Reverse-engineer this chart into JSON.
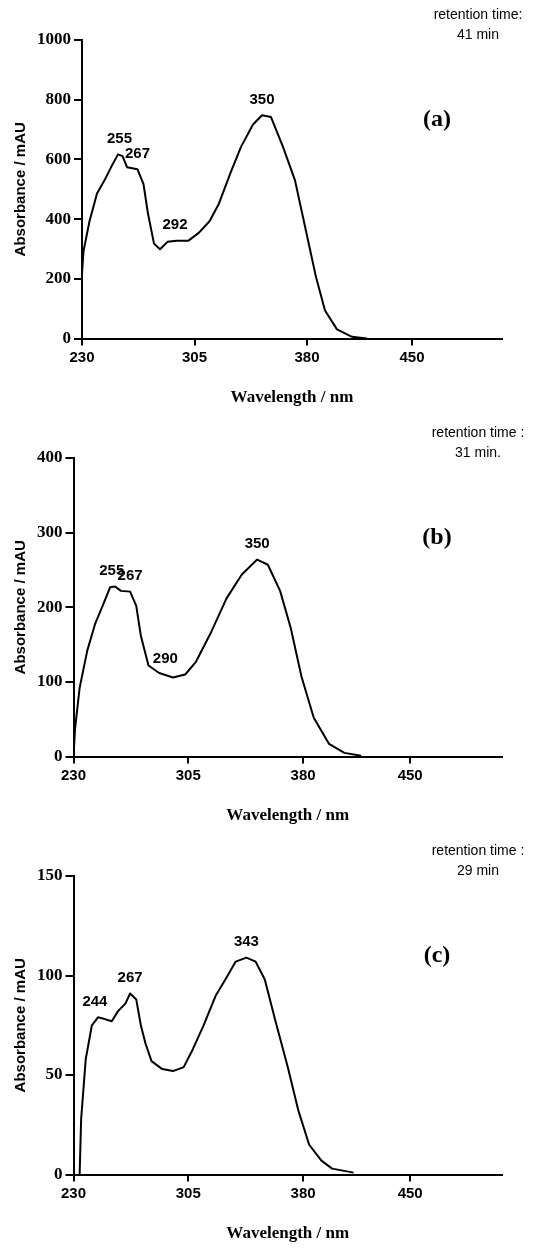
{
  "chart_data": [
    {
      "type": "line",
      "title": "(a)",
      "xlabel": "Wavelength / nm",
      "ylabel": "Absorbance / mAU",
      "annotations": [
        "retention time:",
        "41 min",
        {
          "text": "255",
          "x": 255,
          "y": 617
        },
        {
          "text": "267",
          "x": 267,
          "y": 567
        },
        {
          "text": "292",
          "x": 292,
          "y": 328
        },
        {
          "text": "350",
          "x": 350,
          "y": 748
        }
      ],
      "xlim": [
        230,
        510
      ],
      "xticks": [
        230,
        305,
        380,
        450
      ],
      "ylim": [
        0,
        1000
      ],
      "yticks": [
        0,
        200,
        400,
        600,
        800,
        1000
      ],
      "grid": false,
      "series": [
        {
          "color": "#000000",
          "x": [
            230,
            231,
            235,
            240,
            245,
            250,
            254,
            257,
            260,
            267,
            271,
            274,
            278,
            282,
            287,
            293,
            301,
            308,
            315,
            321,
            329,
            336,
            344,
            350,
            356,
            364,
            372,
            379,
            386,
            392,
            400,
            410,
            420
          ],
          "values": [
            218,
            293,
            393,
            486,
            530,
            580,
            617,
            611,
            574,
            567,
            517,
            418,
            318,
            299,
            324,
            328,
            328,
            355,
            393,
            449,
            555,
            642,
            717,
            748,
            742,
            642,
            530,
            368,
            206,
            94,
            31,
            6,
            0
          ]
        }
      ]
    },
    {
      "type": "line",
      "title": "(b)",
      "xlabel": "Wavelength / nm",
      "ylabel": "Absorbance / mAU",
      "annotations": [
        "retention time :",
        "31 min.",
        {
          "text": "255",
          "x": 255,
          "y": 228
        },
        {
          "text": "267",
          "x": 267,
          "y": 221
        },
        {
          "text": "290",
          "x": 290,
          "y": 110
        },
        {
          "text": "350",
          "x": 350,
          "y": 264
        }
      ],
      "xlim": [
        230,
        510
      ],
      "xticks": [
        230,
        305,
        380,
        450
      ],
      "ylim": [
        0,
        400
      ],
      "yticks": [
        0,
        100,
        200,
        300,
        400
      ],
      "grid": false,
      "series": [
        {
          "color": "#000000",
          "x": [
            230,
            231,
            234,
            239,
            244,
            249,
            254,
            257,
            261,
            267,
            271,
            274,
            279,
            286,
            295,
            303,
            310,
            320,
            330,
            340,
            350,
            357,
            365,
            372,
            379,
            387,
            397,
            407,
            418
          ],
          "values": [
            0,
            37,
            92,
            142,
            177,
            202,
            227,
            228,
            222,
            221,
            202,
            162,
            122,
            112,
            106,
            110,
            127,
            167,
            212,
            244,
            264,
            257,
            222,
            172,
            107,
            52,
            17,
            5,
            1
          ]
        }
      ]
    },
    {
      "type": "line",
      "title": "(c)",
      "xlabel": "Wavelength / nm",
      "ylabel": "Absorbance / mAU",
      "annotations": [
        "retention time :",
        "29 min",
        {
          "text": "244",
          "x": 244,
          "y": 79
        },
        {
          "text": "267",
          "x": 267,
          "y": 91
        },
        {
          "text": "343",
          "x": 343,
          "y": 109
        }
      ],
      "xlim": [
        230,
        510
      ],
      "xticks": [
        230,
        305,
        380,
        450
      ],
      "ylim": [
        0,
        150
      ],
      "yticks": [
        0,
        50,
        100,
        150
      ],
      "grid": false,
      "series": [
        {
          "color": "#000000",
          "x": [
            234,
            235,
            238,
            242,
            246,
            251,
            255,
            259,
            264,
            267,
            271,
            274,
            277,
            281,
            288,
            295,
            302,
            308,
            315,
            323,
            330,
            336,
            343,
            349,
            355,
            362,
            370,
            377,
            384,
            392,
            399,
            413
          ],
          "values": [
            0,
            28,
            58,
            75,
            79,
            78,
            77,
            82,
            86,
            91,
            88,
            75,
            66,
            57,
            53,
            52,
            54,
            63,
            75,
            90,
            99,
            107,
            109,
            107,
            98,
            77,
            54,
            32,
            15,
            7,
            3,
            1
          ]
        }
      ]
    }
  ]
}
